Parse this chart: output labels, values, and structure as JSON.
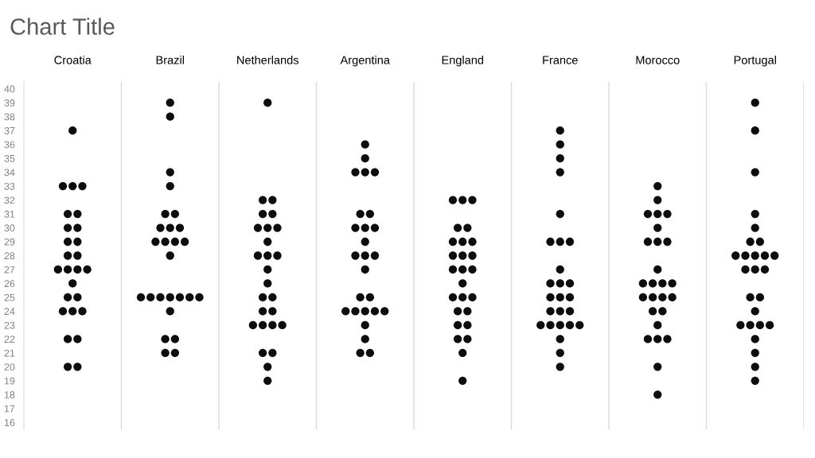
{
  "chart_data": {
    "type": "scatter",
    "title": "Chart Title",
    "categories": [
      "Croatia",
      "Brazil",
      "Netherlands",
      "Argentina",
      "England",
      "France",
      "Morocco",
      "Portugal"
    ],
    "series": [
      {
        "color": "#0d0d0d",
        "x": [
          "Croatia",
          "Croatia",
          "Croatia",
          "Croatia",
          "Croatia",
          "Croatia",
          "Croatia",
          "Croatia",
          "Croatia",
          "Croatia",
          "Croatia",
          "Croatia",
          "Croatia",
          "Croatia",
          "Croatia",
          "Croatia",
          "Croatia",
          "Croatia",
          "Croatia",
          "Croatia",
          "Croatia",
          "Croatia",
          "Croatia",
          "Croatia",
          "Croatia",
          "Croatia",
          "Brazil",
          "Brazil",
          "Brazil",
          "Brazil",
          "Brazil",
          "Brazil",
          "Brazil",
          "Brazil",
          "Brazil",
          "Brazil",
          "Brazil",
          "Brazil",
          "Brazil",
          "Brazil",
          "Brazil",
          "Brazil",
          "Brazil",
          "Brazil",
          "Brazil",
          "Brazil",
          "Brazil",
          "Brazil",
          "Brazil",
          "Brazil",
          "Brazil",
          "Brazil",
          "Netherlands",
          "Netherlands",
          "Netherlands",
          "Netherlands",
          "Netherlands",
          "Netherlands",
          "Netherlands",
          "Netherlands",
          "Netherlands",
          "Netherlands",
          "Netherlands",
          "Netherlands",
          "Netherlands",
          "Netherlands",
          "Netherlands",
          "Netherlands",
          "Netherlands",
          "Netherlands",
          "Netherlands",
          "Netherlands",
          "Netherlands",
          "Netherlands",
          "Netherlands",
          "Netherlands",
          "Netherlands",
          "Netherlands",
          "Argentina",
          "Argentina",
          "Argentina",
          "Argentina",
          "Argentina",
          "Argentina",
          "Argentina",
          "Argentina",
          "Argentina",
          "Argentina",
          "Argentina",
          "Argentina",
          "Argentina",
          "Argentina",
          "Argentina",
          "Argentina",
          "Argentina",
          "Argentina",
          "Argentina",
          "Argentina",
          "Argentina",
          "Argentina",
          "Argentina",
          "Argentina",
          "Argentina",
          "Argentina",
          "England",
          "England",
          "England",
          "England",
          "England",
          "England",
          "England",
          "England",
          "England",
          "England",
          "England",
          "England",
          "England",
          "England",
          "England",
          "England",
          "England",
          "England",
          "England",
          "England",
          "England",
          "England",
          "England",
          "England",
          "England",
          "England",
          "France",
          "France",
          "France",
          "France",
          "France",
          "France",
          "France",
          "France",
          "France",
          "France",
          "France",
          "France",
          "France",
          "France",
          "France",
          "France",
          "France",
          "France",
          "France",
          "France",
          "France",
          "France",
          "France",
          "France",
          "France",
          "France",
          "Morocco",
          "Morocco",
          "Morocco",
          "Morocco",
          "Morocco",
          "Morocco",
          "Morocco",
          "Morocco",
          "Morocco",
          "Morocco",
          "Morocco",
          "Morocco",
          "Morocco",
          "Morocco",
          "Morocco",
          "Morocco",
          "Morocco",
          "Morocco",
          "Morocco",
          "Morocco",
          "Morocco",
          "Morocco",
          "Morocco",
          "Morocco",
          "Morocco",
          "Morocco",
          "Portugal",
          "Portugal",
          "Portugal",
          "Portugal",
          "Portugal",
          "Portugal",
          "Portugal",
          "Portugal",
          "Portugal",
          "Portugal",
          "Portugal",
          "Portugal",
          "Portugal",
          "Portugal",
          "Portugal",
          "Portugal",
          "Portugal",
          "Portugal",
          "Portugal",
          "Portugal",
          "Portugal",
          "Portugal",
          "Portugal",
          "Portugal",
          "Portugal",
          "Portugal"
        ],
        "values": [
          37,
          33,
          33,
          33,
          31,
          31,
          30,
          30,
          29,
          29,
          28,
          28,
          27,
          27,
          27,
          27,
          26,
          25,
          25,
          24,
          24,
          24,
          22,
          22,
          20,
          20,
          39,
          38,
          34,
          33,
          31,
          31,
          30,
          30,
          30,
          29,
          29,
          29,
          29,
          28,
          25,
          25,
          25,
          25,
          25,
          25,
          25,
          24,
          22,
          22,
          21,
          21,
          39,
          32,
          32,
          31,
          31,
          30,
          30,
          30,
          29,
          28,
          28,
          28,
          27,
          26,
          25,
          25,
          24,
          24,
          23,
          23,
          23,
          23,
          21,
          21,
          20,
          19,
          36,
          35,
          34,
          34,
          34,
          31,
          31,
          30,
          30,
          30,
          29,
          28,
          28,
          28,
          27,
          25,
          25,
          24,
          24,
          24,
          24,
          24,
          23,
          22,
          21,
          21,
          32,
          32,
          32,
          30,
          30,
          29,
          29,
          29,
          28,
          28,
          28,
          27,
          27,
          27,
          26,
          25,
          25,
          25,
          24,
          24,
          23,
          23,
          22,
          22,
          21,
          19,
          37,
          36,
          35,
          34,
          31,
          29,
          29,
          29,
          27,
          26,
          26,
          26,
          25,
          25,
          25,
          24,
          24,
          24,
          23,
          23,
          23,
          23,
          23,
          22,
          21,
          20,
          33,
          32,
          31,
          31,
          31,
          30,
          29,
          29,
          29,
          27,
          26,
          26,
          26,
          26,
          25,
          25,
          25,
          25,
          24,
          24,
          23,
          22,
          22,
          22,
          20,
          18,
          39,
          37,
          34,
          31,
          30,
          29,
          29,
          28,
          28,
          28,
          28,
          28,
          27,
          27,
          27,
          25,
          25,
          24,
          23,
          23,
          23,
          23,
          22,
          21,
          20,
          19
        ]
      }
    ],
    "ylim": [
      15.5,
      40.5
    ],
    "yticks": [
      16,
      17,
      18,
      19,
      20,
      21,
      22,
      23,
      24,
      25,
      26,
      27,
      28,
      29,
      30,
      31,
      32,
      33,
      34,
      35,
      36,
      37,
      38,
      39,
      40
    ],
    "grid": "x",
    "marker": "circle",
    "legend": false
  }
}
